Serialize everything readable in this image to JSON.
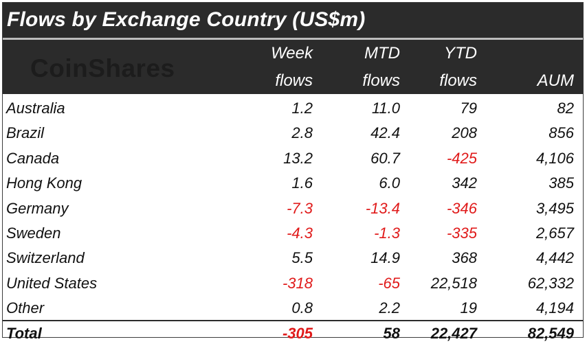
{
  "title": "Flows by Exchange Country (US$m)",
  "logo": "CoinShares",
  "columns": {
    "week": [
      "Week",
      "flows"
    ],
    "mtd": [
      "MTD",
      "flows"
    ],
    "ytd": [
      "YTD",
      "flows"
    ],
    "aum": "AUM"
  },
  "colors": {
    "negative": "#e01a1a",
    "header_bg": "#2b2b2b",
    "text": "#111111"
  },
  "chart_data": {
    "type": "table",
    "title": "Flows by Exchange Country (US$m)",
    "headers": [
      "Week flows",
      "MTD flows",
      "YTD flows",
      "AUM"
    ],
    "rows": [
      {
        "country": "Australia",
        "week": "1.2",
        "mtd": "11.0",
        "ytd": "79",
        "aum": "82"
      },
      {
        "country": "Brazil",
        "week": "2.8",
        "mtd": "42.4",
        "ytd": "208",
        "aum": "856"
      },
      {
        "country": "Canada",
        "week": "13.2",
        "mtd": "60.7",
        "ytd": "-425",
        "aum": "4,106"
      },
      {
        "country": "Hong Kong",
        "week": "1.6",
        "mtd": "6.0",
        "ytd": "342",
        "aum": "385"
      },
      {
        "country": "Germany",
        "week": "-7.3",
        "mtd": "-13.4",
        "ytd": "-346",
        "aum": "3,495"
      },
      {
        "country": "Sweden",
        "week": "-4.3",
        "mtd": "-1.3",
        "ytd": "-335",
        "aum": "2,657"
      },
      {
        "country": "Switzerland",
        "week": "5.5",
        "mtd": "14.9",
        "ytd": "368",
        "aum": "4,442"
      },
      {
        "country": "United States",
        "week": "-318",
        "mtd": "-65",
        "ytd": "22,518",
        "aum": "62,332"
      },
      {
        "country": "Other",
        "week": "0.8",
        "mtd": "2.2",
        "ytd": "19",
        "aum": "4,194"
      }
    ],
    "total": {
      "country": "Total",
      "week": "-305",
      "mtd": "58",
      "ytd": "22,427",
      "aum": "82,549"
    }
  }
}
